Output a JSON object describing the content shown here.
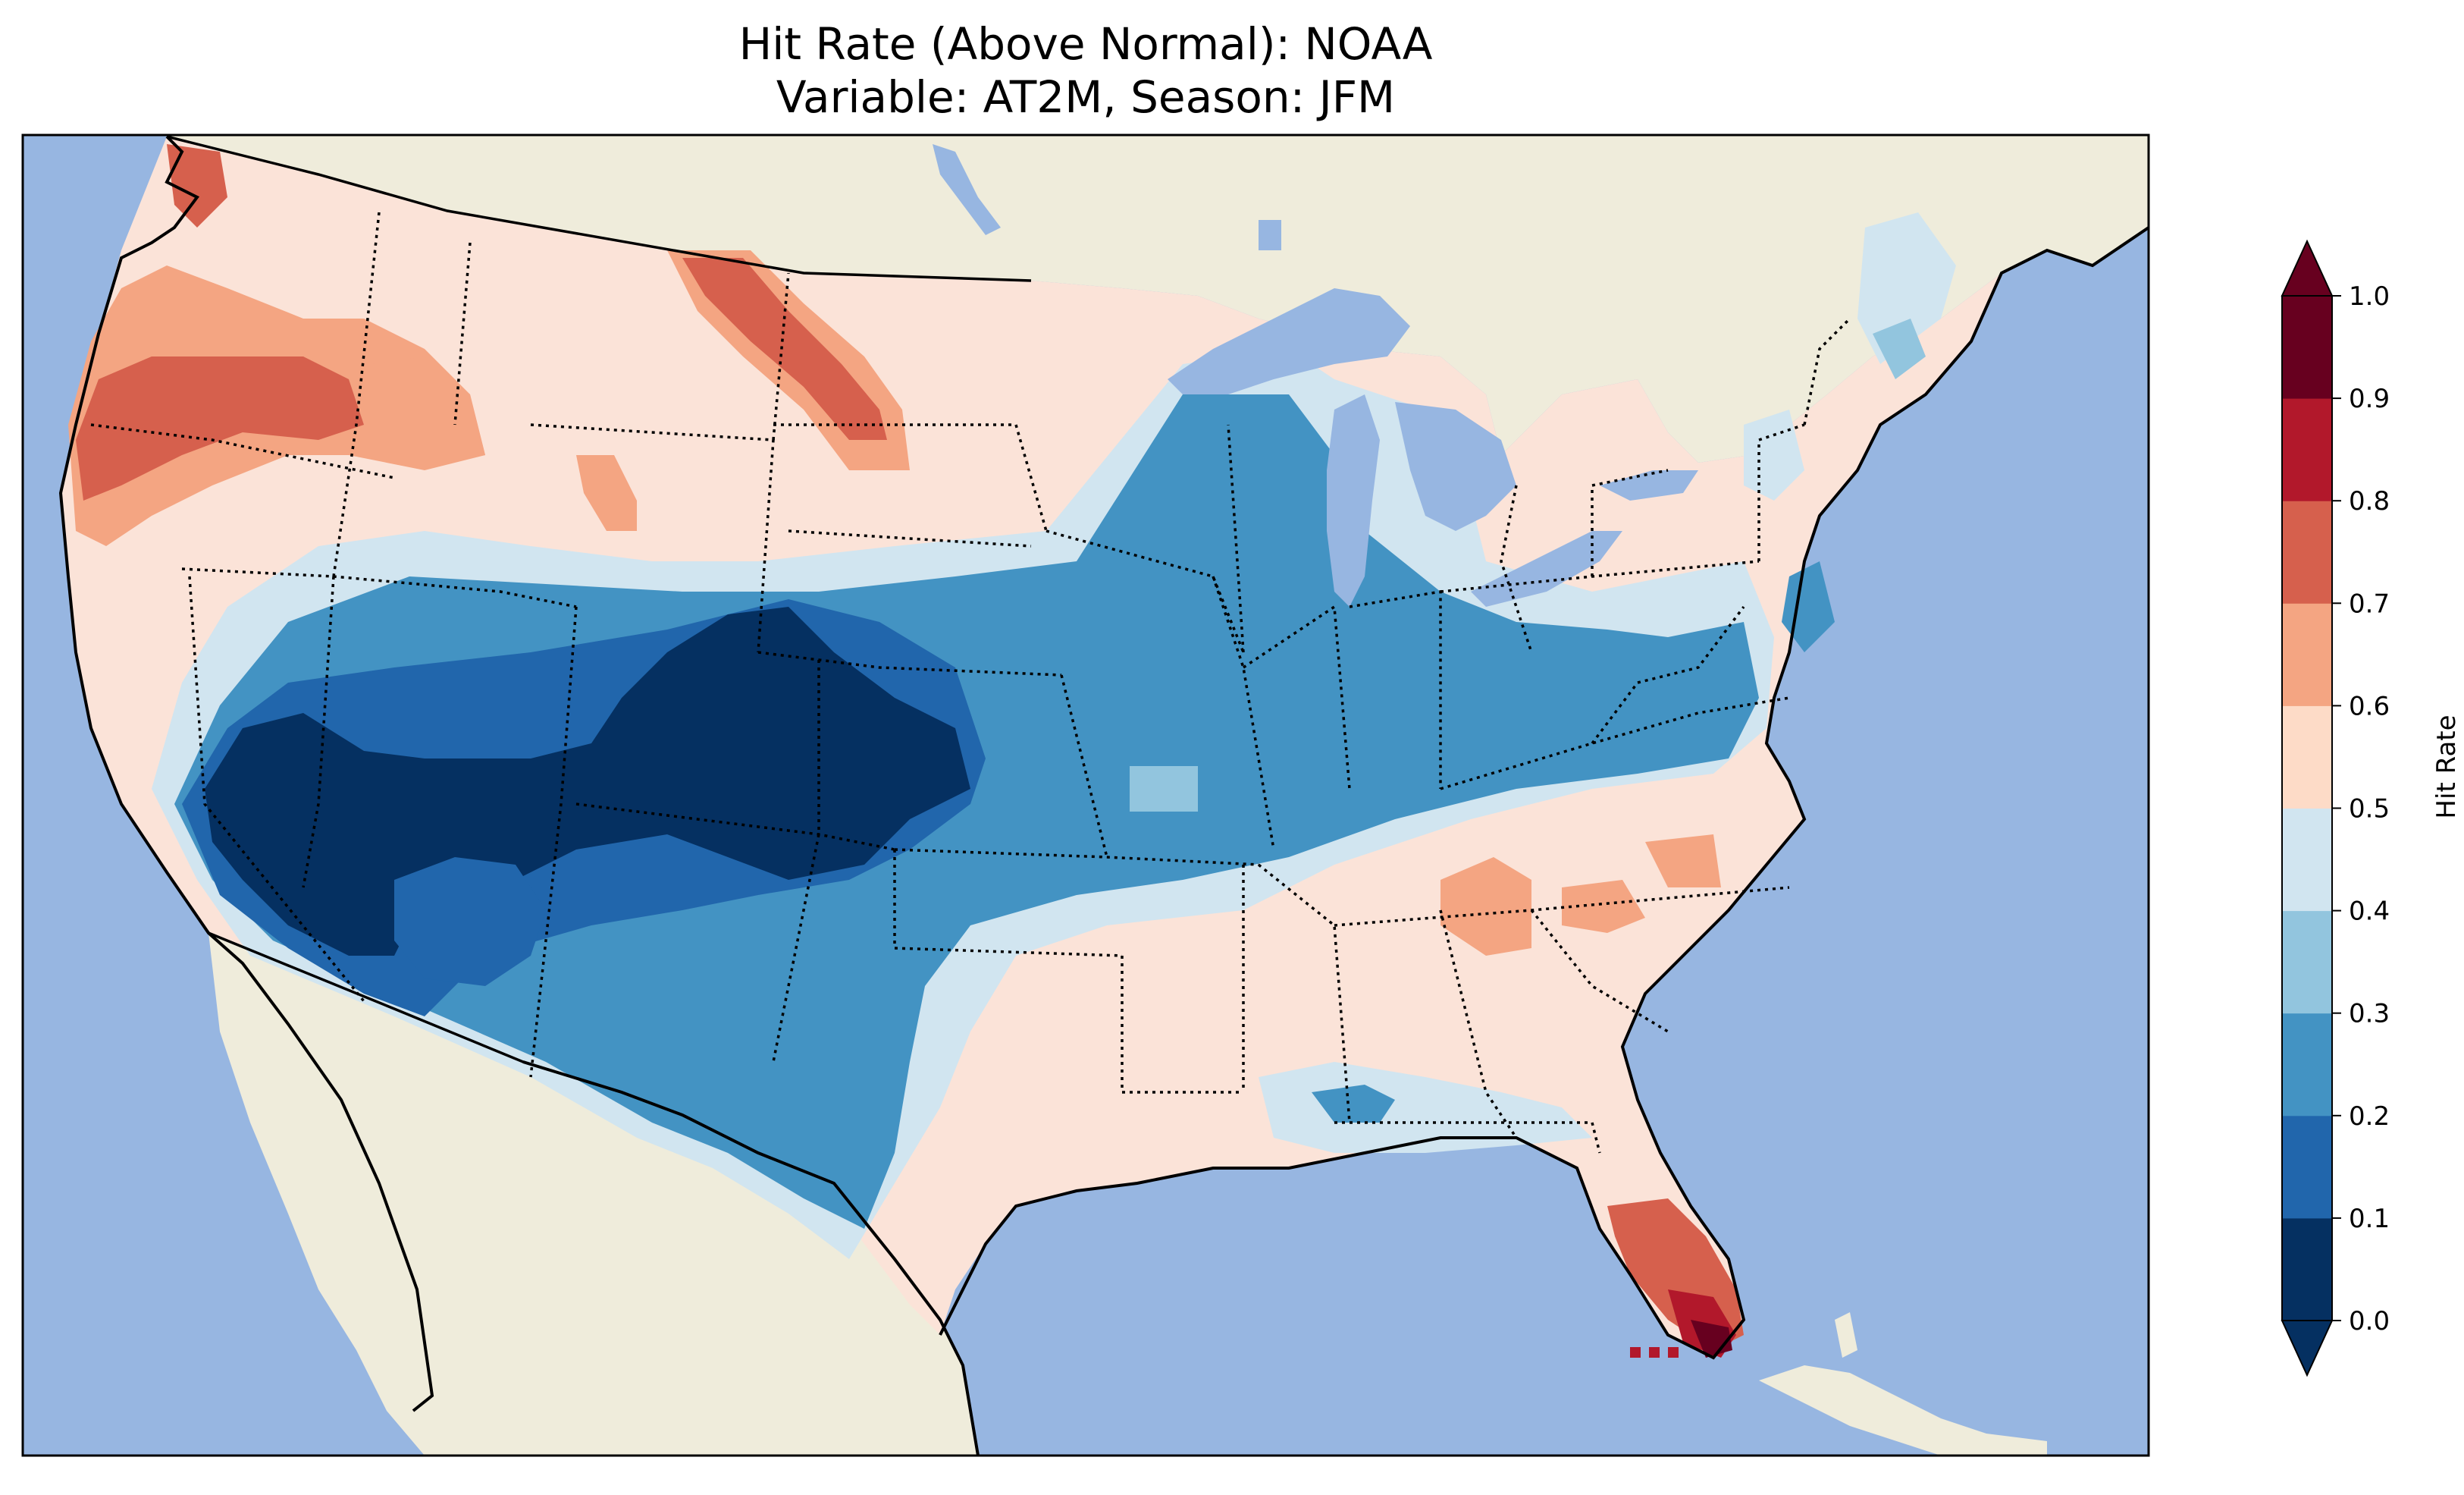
{
  "title": {
    "line1": "Hit Rate (Above Normal): NOAA",
    "line2": "Variable: AT2M, Season: JFM"
  },
  "colorbar": {
    "label": "Hit Rate",
    "ticks": [
      "0.0",
      "0.1",
      "0.2",
      "0.3",
      "0.4",
      "0.5",
      "0.6",
      "0.7",
      "0.8",
      "0.9",
      "1.0"
    ],
    "colors": [
      "#053061",
      "#2166ac",
      "#4393c3",
      "#92c5de",
      "#d1e5f0",
      "#fddbc7",
      "#f4a582",
      "#d6604d",
      "#b2182b",
      "#67001f"
    ],
    "extend": "both"
  },
  "map": {
    "ocean_color": "#97b6e1",
    "land_color": "#efecdb",
    "region": "Contiguous United States"
  },
  "chart_data": {
    "type": "heatmap",
    "title": "Hit Rate (Above Normal): NOAA\nVariable: AT2M, Season: JFM",
    "colorbar_label": "Hit Rate",
    "levels": [
      0.0,
      0.1,
      0.2,
      0.3,
      0.4,
      0.5,
      0.6,
      0.7,
      0.8,
      0.9,
      1.0
    ],
    "cmap": "RdBu_r",
    "regions": [
      {
        "area": "Pacific Northwest coast",
        "hit_rate": 0.7
      },
      {
        "area": "Northern Rockies / Montana",
        "hit_rate": 0.55
      },
      {
        "area": "Northern Plains",
        "hit_rate": 0.55
      },
      {
        "area": "Desert Southwest (NV, AZ, UT, CO)",
        "hit_rate": 0.05
      },
      {
        "area": "Southern Plains / Texas",
        "hit_rate": 0.25
      },
      {
        "area": "Midwest / Great Lakes",
        "hit_rate": 0.25
      },
      {
        "area": "Mid-Atlantic",
        "hit_rate": 0.25
      },
      {
        "area": "Southeast",
        "hit_rate": 0.55
      },
      {
        "area": "Northeast / New England",
        "hit_rate": 0.5
      },
      {
        "area": "South Florida",
        "hit_rate": 0.75
      },
      {
        "area": "Florida Keys tip",
        "hit_rate": 0.95
      }
    ]
  }
}
